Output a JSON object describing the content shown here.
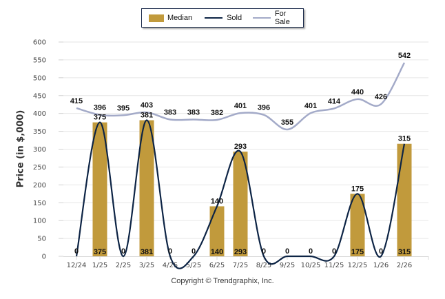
{
  "chart_data": {
    "type": "bar",
    "title": "",
    "xlabel": "",
    "ylabel": "Price (in $,000)",
    "ylim": [
      0,
      600
    ],
    "yticks": [
      0,
      50,
      100,
      150,
      200,
      250,
      300,
      350,
      400,
      450,
      500,
      550,
      600
    ],
    "grid": true,
    "legend_position": "top-center",
    "categories": [
      "12/24",
      "1/25",
      "2/25",
      "3/25",
      "4/25",
      "5/25",
      "6/25",
      "7/25",
      "8/25",
      "9/25",
      "10/25",
      "11/25",
      "12/25",
      "1/26",
      "2/26"
    ],
    "series": [
      {
        "name": "Median",
        "kind": "bar",
        "color": "#c19a3c",
        "values": [
          0,
          375,
          0,
          381,
          0,
          0,
          140,
          293,
          0,
          0,
          0,
          0,
          175,
          0,
          315
        ]
      },
      {
        "name": "Sold",
        "kind": "line",
        "color": "#0d2445",
        "values": [
          0,
          375,
          0,
          381,
          0,
          0,
          140,
          293,
          0,
          0,
          0,
          0,
          175,
          0,
          315
        ]
      },
      {
        "name": "For Sale",
        "kind": "line",
        "color": "#a3aac8",
        "values": [
          415,
          396,
          395,
          403,
          383,
          383,
          382,
          401,
          396,
          355,
          401,
          414,
          440,
          426,
          542
        ]
      }
    ]
  },
  "legend": {
    "items": [
      {
        "label": "Median",
        "color": "#c19a3c"
      },
      {
        "label": "Sold",
        "color": "#0d2445"
      },
      {
        "label": "For Sale",
        "color": "#a3aac8"
      }
    ]
  },
  "footer": {
    "copyright": "Copyright © Trendgraphix, Inc."
  }
}
